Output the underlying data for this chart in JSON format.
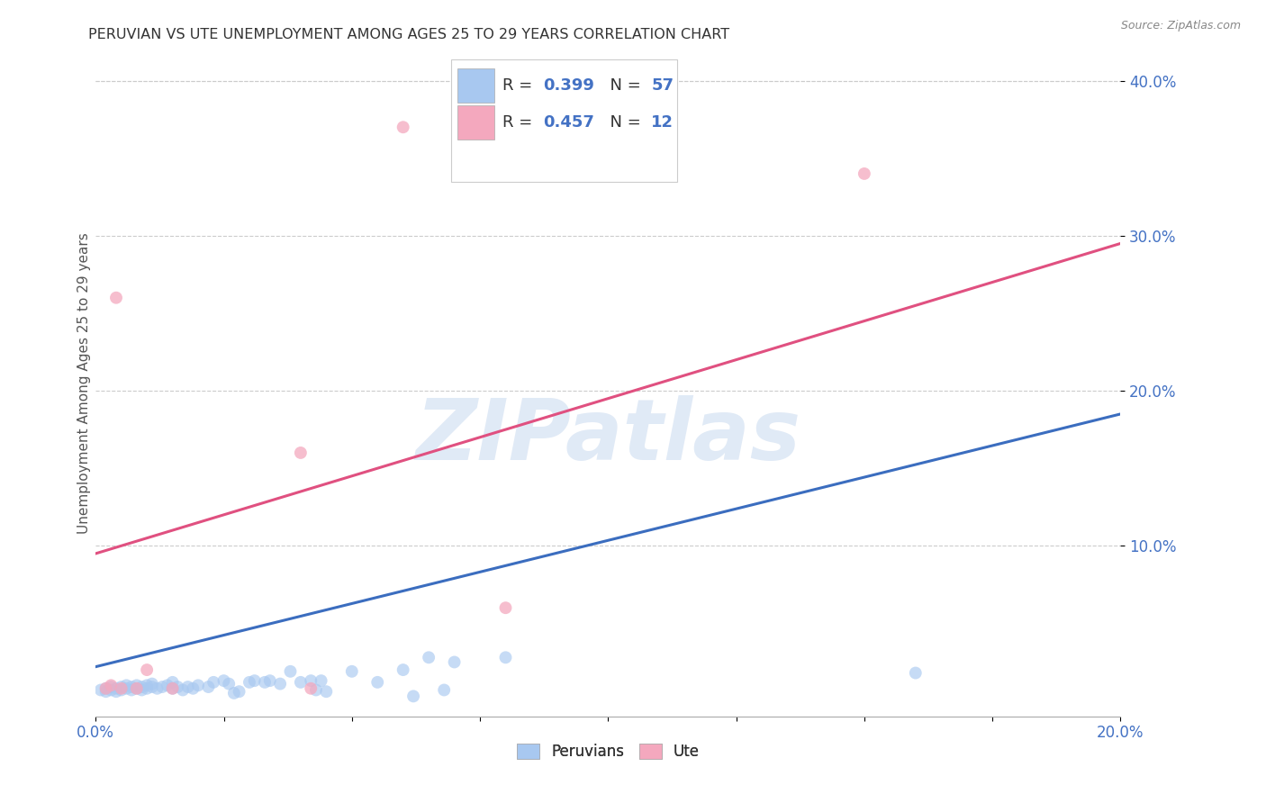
{
  "title": "PERUVIAN VS UTE UNEMPLOYMENT AMONG AGES 25 TO 29 YEARS CORRELATION CHART",
  "source": "Source: ZipAtlas.com",
  "ylabel": "Unemployment Among Ages 25 to 29 years",
  "xlim": [
    0.0,
    0.2
  ],
  "ylim": [
    -0.01,
    0.42
  ],
  "xticks": [
    0.0,
    0.2
  ],
  "xticklabels": [
    "0.0%",
    "20.0%"
  ],
  "yticks": [
    0.1,
    0.2,
    0.3,
    0.4
  ],
  "yticklabels": [
    "10.0%",
    "20.0%",
    "30.0%",
    "40.0%"
  ],
  "blue_color": "#a8c8f0",
  "pink_color": "#f4a8be",
  "blue_line_color": "#3b6dbf",
  "pink_line_color": "#e05080",
  "legend_blue_R": "0.399",
  "legend_blue_N": "57",
  "legend_pink_R": "0.457",
  "legend_pink_N": "12",
  "label_blue": "Peruvians",
  "label_pink": "Ute",
  "watermark": "ZIPatlas",
  "blue_points": [
    [
      0.001,
      0.007
    ],
    [
      0.002,
      0.006
    ],
    [
      0.002,
      0.008
    ],
    [
      0.003,
      0.007
    ],
    [
      0.003,
      0.009
    ],
    [
      0.004,
      0.006
    ],
    [
      0.004,
      0.008
    ],
    [
      0.005,
      0.007
    ],
    [
      0.005,
      0.009
    ],
    [
      0.006,
      0.008
    ],
    [
      0.006,
      0.01
    ],
    [
      0.007,
      0.007
    ],
    [
      0.007,
      0.009
    ],
    [
      0.008,
      0.008
    ],
    [
      0.008,
      0.01
    ],
    [
      0.009,
      0.007
    ],
    [
      0.009,
      0.009
    ],
    [
      0.01,
      0.008
    ],
    [
      0.01,
      0.01
    ],
    [
      0.011,
      0.009
    ],
    [
      0.011,
      0.011
    ],
    [
      0.012,
      0.008
    ],
    [
      0.013,
      0.009
    ],
    [
      0.014,
      0.01
    ],
    [
      0.015,
      0.008
    ],
    [
      0.015,
      0.012
    ],
    [
      0.016,
      0.009
    ],
    [
      0.017,
      0.007
    ],
    [
      0.018,
      0.009
    ],
    [
      0.019,
      0.008
    ],
    [
      0.02,
      0.01
    ],
    [
      0.022,
      0.009
    ],
    [
      0.023,
      0.012
    ],
    [
      0.025,
      0.013
    ],
    [
      0.026,
      0.011
    ],
    [
      0.027,
      0.005
    ],
    [
      0.028,
      0.006
    ],
    [
      0.03,
      0.012
    ],
    [
      0.031,
      0.013
    ],
    [
      0.033,
      0.012
    ],
    [
      0.034,
      0.013
    ],
    [
      0.036,
      0.011
    ],
    [
      0.038,
      0.019
    ],
    [
      0.04,
      0.012
    ],
    [
      0.042,
      0.013
    ],
    [
      0.043,
      0.007
    ],
    [
      0.044,
      0.013
    ],
    [
      0.045,
      0.006
    ],
    [
      0.05,
      0.019
    ],
    [
      0.055,
      0.012
    ],
    [
      0.06,
      0.02
    ],
    [
      0.062,
      0.003
    ],
    [
      0.065,
      0.028
    ],
    [
      0.068,
      0.007
    ],
    [
      0.07,
      0.025
    ],
    [
      0.08,
      0.028
    ],
    [
      0.16,
      0.018
    ]
  ],
  "pink_points": [
    [
      0.002,
      0.008
    ],
    [
      0.003,
      0.01
    ],
    [
      0.004,
      0.26
    ],
    [
      0.005,
      0.008
    ],
    [
      0.008,
      0.008
    ],
    [
      0.01,
      0.02
    ],
    [
      0.015,
      0.008
    ],
    [
      0.04,
      0.16
    ],
    [
      0.042,
      0.008
    ],
    [
      0.06,
      0.37
    ],
    [
      0.08,
      0.06
    ],
    [
      0.15,
      0.34
    ]
  ],
  "blue_line_x": [
    0.0,
    0.2
  ],
  "blue_line_y": [
    0.022,
    0.185
  ],
  "pink_line_x": [
    0.0,
    0.2
  ],
  "pink_line_y": [
    0.095,
    0.295
  ],
  "background_color": "#ffffff",
  "grid_color": "#cccccc",
  "title_color": "#333333",
  "tick_color": "#4472c4",
  "marker_size": 100
}
